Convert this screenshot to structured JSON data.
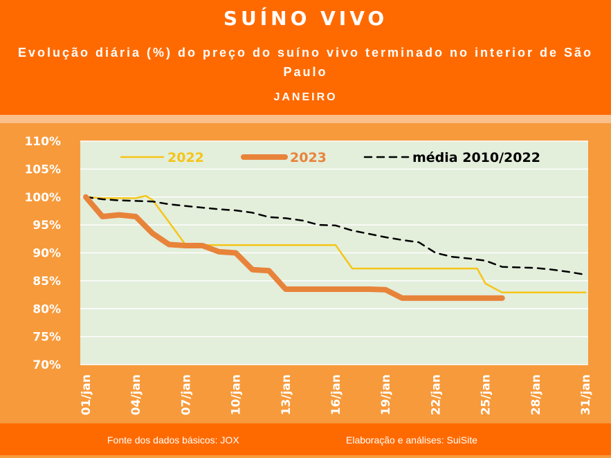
{
  "header": {
    "title": "SUÍNO VIVO",
    "subtitle": "Evolução diária (%) do preço do suíno vivo terminado no interior de São Paulo",
    "month": "JANEIRO"
  },
  "footer": {
    "source": "Fonte dos dados básicos: JOX",
    "credit": "Elaboração e análises: SuiSite"
  },
  "colors": {
    "header_bg": "#ff6a00",
    "page_bg": "#f79a3b",
    "plot_bg": "#e3eedb",
    "series_2022": "#f5c518",
    "series_2023": "#e8833a",
    "series_media": "#000000"
  },
  "chart_data": {
    "type": "line",
    "title": "SUÍNO VIVO",
    "ylim": [
      70,
      110
    ],
    "y_ticks": [
      "110%",
      "105%",
      "100%",
      "95%",
      "90%",
      "85%",
      "80%",
      "75%",
      "70%"
    ],
    "x_range": [
      1,
      31
    ],
    "x_tick_labels": [
      "01/jan",
      "04/jan",
      "07/jan",
      "10/jan",
      "13/jan",
      "16/jan",
      "19/jan",
      "22/jan",
      "25/jan",
      "28/jan",
      "31/jan"
    ],
    "grid": true,
    "legend_position": "top",
    "series": [
      {
        "name": "2022",
        "style": "solid",
        "color": "#f5c518",
        "x": [
          1,
          2,
          3,
          4,
          4.6,
          5,
          6,
          7,
          8,
          9,
          10,
          11,
          12,
          13,
          14,
          15,
          15.5,
          16,
          17,
          18,
          19,
          20,
          21,
          22,
          23,
          24,
          24.5,
          25,
          26,
          27,
          28,
          29,
          30,
          31
        ],
        "y": [
          100,
          99.8,
          99.8,
          99.8,
          100.2,
          99.5,
          95.5,
          91.4,
          91.4,
          91.4,
          91.4,
          91.4,
          91.4,
          91.4,
          91.4,
          91.4,
          91.4,
          91.4,
          87.2,
          87.2,
          87.2,
          87.2,
          87.2,
          87.2,
          87.2,
          87.2,
          87.2,
          84.5,
          82.9,
          82.9,
          82.9,
          82.9,
          82.9,
          82.9
        ]
      },
      {
        "name": "2023",
        "style": "thick",
        "color": "#e8833a",
        "x": [
          1,
          2,
          3,
          4,
          5,
          6,
          7,
          8,
          9,
          10,
          11,
          12,
          13,
          14,
          15,
          16,
          17,
          18,
          19,
          20,
          21,
          22,
          23,
          24,
          25,
          26
        ],
        "y": [
          100,
          96.5,
          96.8,
          96.5,
          93.5,
          91.5,
          91.3,
          91.3,
          90.2,
          90.0,
          87.0,
          86.8,
          83.5,
          83.5,
          83.5,
          83.5,
          83.5,
          83.5,
          83.4,
          81.9,
          81.9,
          81.9,
          81.9,
          81.9,
          81.9,
          81.9
        ]
      },
      {
        "name": "média 2010/2022",
        "style": "dashed",
        "color": "#000000",
        "x": [
          1,
          2,
          3,
          4,
          5,
          6,
          7,
          8,
          9,
          10,
          11,
          12,
          13,
          14,
          15,
          16,
          17,
          18,
          19,
          20,
          21,
          22,
          23,
          24,
          25,
          26,
          27,
          28,
          29,
          30,
          31
        ],
        "y": [
          100,
          99.6,
          99.4,
          99.3,
          99.2,
          98.7,
          98.4,
          98.1,
          97.8,
          97.6,
          97.2,
          96.4,
          96.2,
          95.8,
          95.0,
          94.9,
          94.0,
          93.4,
          92.8,
          92.3,
          91.9,
          90.0,
          89.3,
          89.0,
          88.6,
          87.5,
          87.4,
          87.3,
          87.0,
          86.6,
          86.1
        ]
      }
    ]
  }
}
